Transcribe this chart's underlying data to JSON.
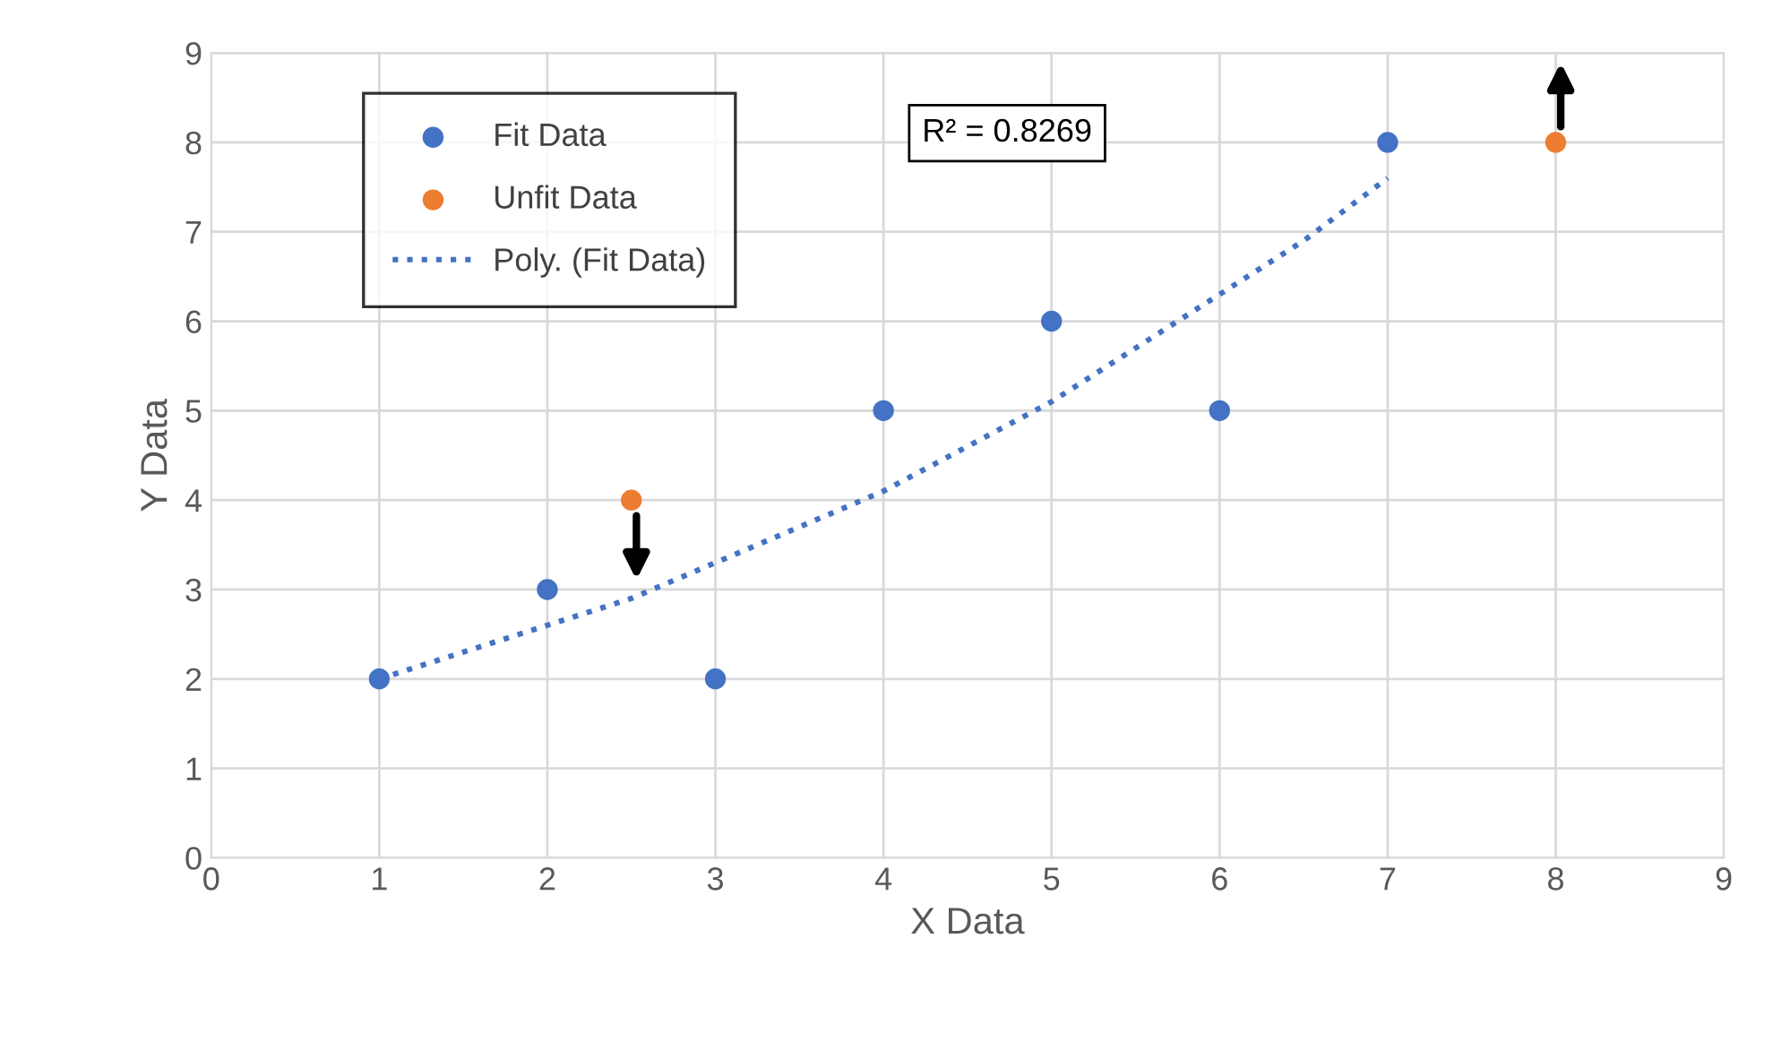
{
  "chart_data": {
    "type": "scatter",
    "xlabel": "X Data",
    "ylabel": "Y Data",
    "series": [
      {
        "name": "Fit Data",
        "color": "#4472c4",
        "x": [
          1,
          2,
          3,
          4,
          5,
          6,
          7
        ],
        "values": [
          2,
          3,
          2,
          5,
          6,
          5,
          8
        ]
      },
      {
        "name": "Unfit Data",
        "color": "#ed7d31",
        "x": [
          2.5,
          8
        ],
        "values": [
          4,
          8
        ]
      },
      {
        "name": "Poly. (Fit Data)",
        "type": "line",
        "color": "#4472c4",
        "line_style": "dotted",
        "marker": "none",
        "x": [
          1,
          1.5,
          2,
          2.5,
          3,
          3.5,
          4,
          4.5,
          5,
          5.5,
          6,
          6.5,
          7
        ],
        "values": [
          2.0,
          2.3,
          2.6,
          2.9,
          3.3,
          3.7,
          4.1,
          4.6,
          5.1,
          5.7,
          6.3,
          6.9,
          7.6
        ]
      }
    ],
    "annotations": [
      "R² = 0.8269"
    ],
    "xlim": [
      0,
      9
    ],
    "ylim": [
      0,
      9
    ],
    "xticks": [
      0,
      1,
      2,
      3,
      4,
      5,
      6,
      7,
      8,
      9
    ],
    "yticks": [
      0,
      1,
      2,
      3,
      4,
      5,
      6,
      7,
      8,
      9
    ],
    "grid": true,
    "legend": "top left",
    "marker": "circle"
  }
}
